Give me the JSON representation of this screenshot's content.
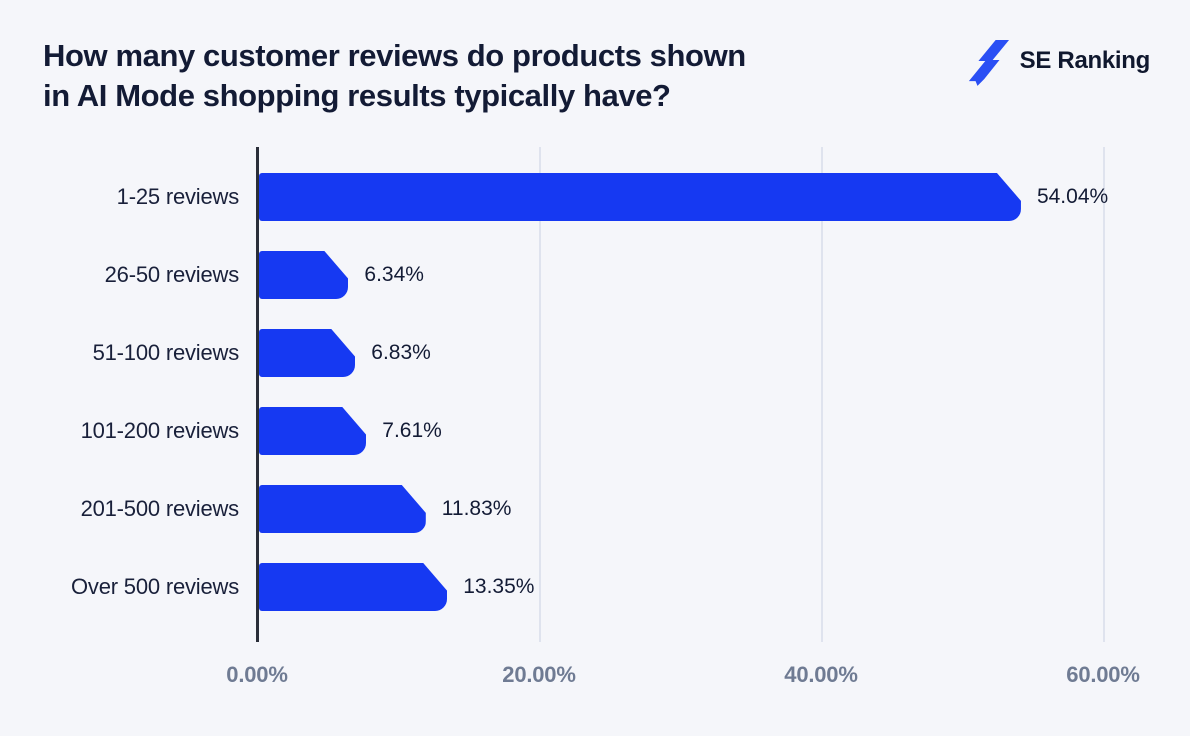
{
  "title": {
    "line1": "How many customer reviews do products shown",
    "line2": "in AI Mode shopping results typically have?"
  },
  "logo": {
    "text": "SE Ranking"
  },
  "chart_data": {
    "type": "bar",
    "orientation": "horizontal",
    "title": "How many customer reviews do products shown in AI Mode shopping results typically have?",
    "categories": [
      "1-25 reviews",
      "26-50 reviews",
      "51-100 reviews",
      "101-200 reviews",
      "201-500 reviews",
      "Over 500 reviews"
    ],
    "values": [
      54.04,
      6.34,
      6.83,
      7.61,
      11.83,
      13.35
    ],
    "value_labels": [
      "54.04%",
      "6.34%",
      "6.83%",
      "7.61%",
      "11.83%",
      "13.35%"
    ],
    "x_ticks": [
      "0.00%",
      "20.00%",
      "40.00%",
      "60.00%"
    ],
    "x_tick_values": [
      0,
      20,
      40,
      60
    ],
    "xlim": [
      0,
      60
    ],
    "grid": "vertical-gridlines-at-20-40-60",
    "legend": "none",
    "bar_color": "#1639F2"
  },
  "colors": {
    "background": "#F5F6FA",
    "bar_blue": "#1639F2",
    "logo_blue": "#2A4FF4",
    "text_dark": "#131B35",
    "tick_gray": "#6F7B93",
    "gridline": "#DFE3EE",
    "axis_line": "#2A2E39"
  }
}
